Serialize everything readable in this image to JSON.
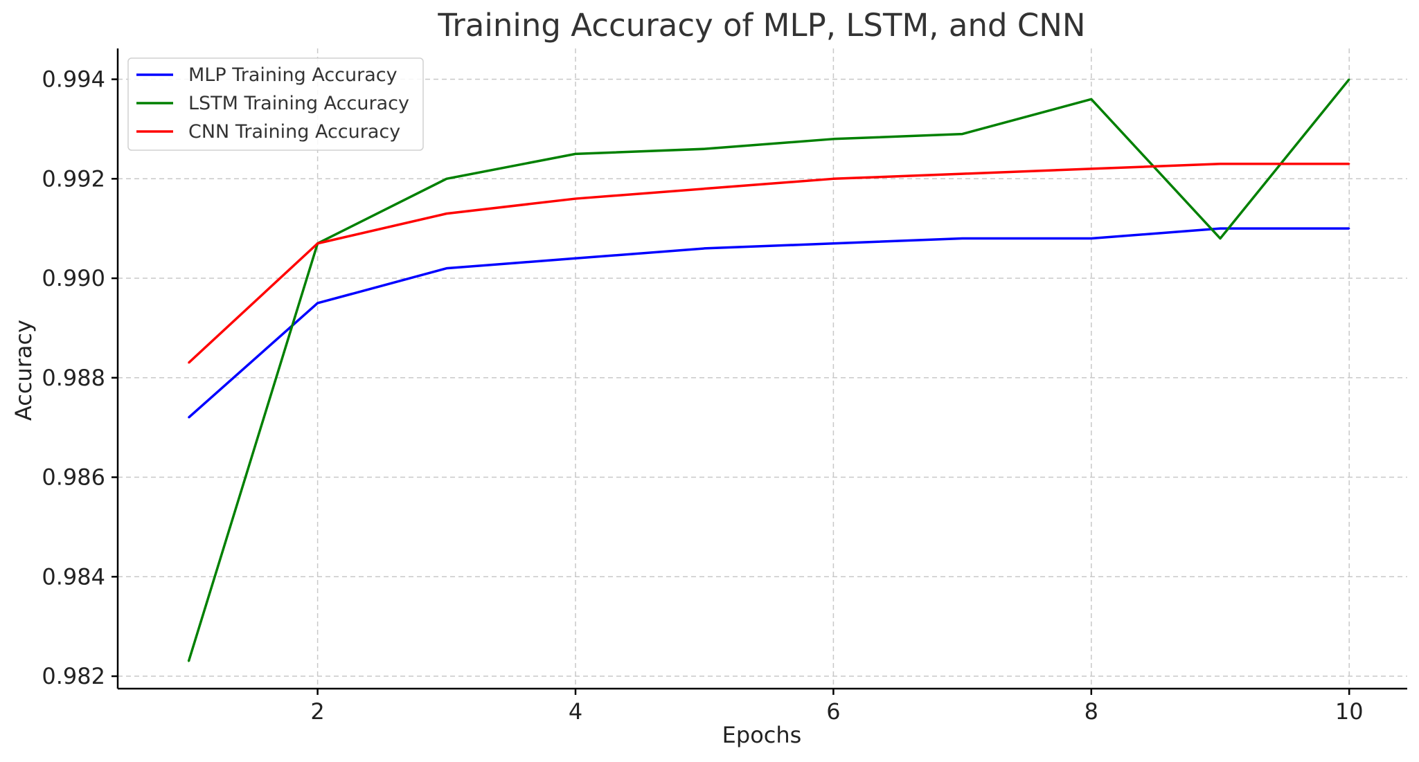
{
  "chart_data": {
    "type": "line",
    "title": "Training Accuracy of MLP, LSTM, and CNN",
    "xlabel": "Epochs",
    "ylabel": "Accuracy",
    "x": [
      1,
      2,
      3,
      4,
      5,
      6,
      7,
      8,
      9,
      10
    ],
    "xlim": [
      0.45,
      10.45
    ],
    "ylim": [
      0.98175,
      0.99462
    ],
    "xticks": [
      2,
      4,
      6,
      8,
      10
    ],
    "xtick_labels": [
      "2",
      "4",
      "6",
      "8",
      "10"
    ],
    "yticks": [
      0.982,
      0.984,
      0.986,
      0.988,
      0.99,
      0.992,
      0.994
    ],
    "ytick_labels": [
      "0.982",
      "0.984",
      "0.986",
      "0.988",
      "0.990",
      "0.992",
      "0.994"
    ],
    "grid": true,
    "legend_position": "top-left",
    "series": [
      {
        "name": "MLP Training Accuracy",
        "color": "#0000ff",
        "values": [
          0.9872,
          0.9895,
          0.9902,
          0.9904,
          0.9906,
          0.9907,
          0.9908,
          0.9908,
          0.991,
          0.991
        ]
      },
      {
        "name": "LSTM Training Accuracy",
        "color": "#008000",
        "values": [
          0.9823,
          0.9907,
          0.992,
          0.9925,
          0.9926,
          0.9928,
          0.9929,
          0.9936,
          0.9908,
          0.994
        ]
      },
      {
        "name": "CNN Training Accuracy",
        "color": "#ff0000",
        "values": [
          0.9883,
          0.9907,
          0.9913,
          0.9916,
          0.9918,
          0.992,
          0.9921,
          0.9922,
          0.9923,
          0.9923
        ]
      }
    ]
  }
}
